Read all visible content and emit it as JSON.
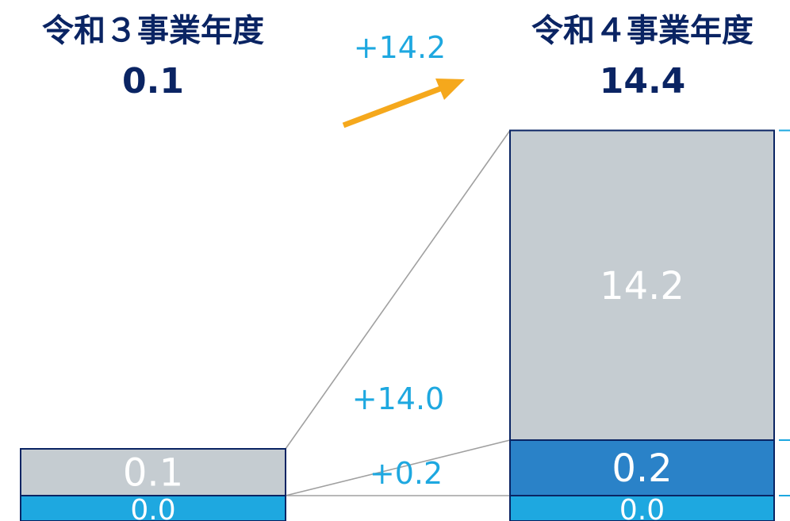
{
  "chart_data": {
    "type": "bar",
    "stacked": true,
    "categories": [
      "令和３事業年度",
      "令和４事業年度"
    ],
    "totals": [
      "0.1",
      "14.4"
    ],
    "series": [
      {
        "values": [
          0.0,
          0.0
        ],
        "labels": [
          "0.0",
          "0.0"
        ],
        "color": "#1ea8e0"
      },
      {
        "values": [
          0.0,
          0.2
        ],
        "labels": [
          "",
          "0.2"
        ],
        "color": "#2a82c8"
      },
      {
        "values": [
          0.1,
          14.2
        ],
        "labels": [
          "0.1",
          "14.2"
        ],
        "color": "#c5ccd1"
      }
    ],
    "change_labels": {
      "total": "+14.2",
      "segments": [
        "+14.0",
        "+0.2"
      ]
    },
    "colors": {
      "title": "#0a2463",
      "change": "#1ea8e0",
      "arrow": "#f5a81c",
      "edge": "#0a2463",
      "connector": "#a0a0a0"
    },
    "grid": false,
    "legend": "none"
  }
}
